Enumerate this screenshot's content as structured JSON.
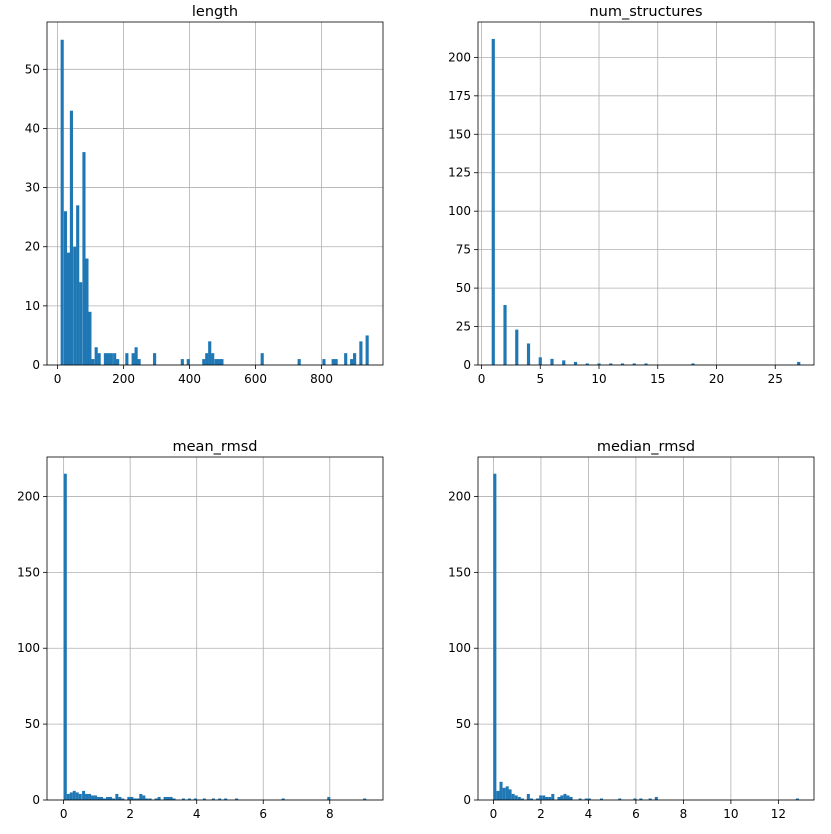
{
  "chart_data": [
    {
      "type": "bar",
      "title": "length",
      "xlim": [
        -32,
        986
      ],
      "ylim": [
        0,
        58
      ],
      "xticks": [
        0,
        200,
        400,
        600,
        800
      ],
      "yticks": [
        0,
        10,
        20,
        30,
        40,
        50
      ],
      "grid": true,
      "color": "#1f77b4",
      "bin_width": 9.5,
      "bins": [
        [
          14,
          55
        ],
        [
          24,
          26
        ],
        [
          33,
          19
        ],
        [
          42,
          43
        ],
        [
          52,
          20
        ],
        [
          61,
          27
        ],
        [
          70,
          14
        ],
        [
          80,
          36
        ],
        [
          89,
          18
        ],
        [
          98,
          9
        ],
        [
          107,
          1
        ],
        [
          117,
          3
        ],
        [
          126,
          2
        ],
        [
          145,
          2
        ],
        [
          154,
          2
        ],
        [
          163,
          2
        ],
        [
          173,
          2
        ],
        [
          182,
          1
        ],
        [
          210,
          2
        ],
        [
          229,
          2
        ],
        [
          238,
          3
        ],
        [
          247,
          1
        ],
        [
          294,
          2
        ],
        [
          378,
          1
        ],
        [
          396,
          1
        ],
        [
          443,
          1
        ],
        [
          452,
          2
        ],
        [
          461,
          4
        ],
        [
          470,
          2
        ],
        [
          480,
          1
        ],
        [
          489,
          1
        ],
        [
          498,
          1
        ],
        [
          620,
          2
        ],
        [
          732,
          1
        ],
        [
          807,
          1
        ],
        [
          835,
          1
        ],
        [
          844,
          1
        ],
        [
          873,
          2
        ],
        [
          891,
          1
        ],
        [
          900,
          2
        ],
        [
          919,
          4
        ],
        [
          938,
          5
        ]
      ]
    },
    {
      "type": "bar",
      "title": "num_structures",
      "xlim": [
        -0.3,
        28.3
      ],
      "ylim": [
        0,
        223
      ],
      "xticks": [
        0,
        5,
        10,
        15,
        20,
        25
      ],
      "yticks": [
        0,
        25,
        50,
        75,
        100,
        125,
        150,
        175,
        200
      ],
      "grid": true,
      "color": "#1f77b4",
      "bin_width": 0.27,
      "bins": [
        [
          1,
          212
        ],
        [
          2,
          39
        ],
        [
          3,
          23
        ],
        [
          4,
          14
        ],
        [
          5,
          5
        ],
        [
          6,
          4
        ],
        [
          7,
          3
        ],
        [
          8,
          2
        ],
        [
          9,
          1
        ],
        [
          10,
          1
        ],
        [
          11,
          1
        ],
        [
          12,
          1
        ],
        [
          13,
          1
        ],
        [
          14,
          1
        ],
        [
          18,
          1
        ],
        [
          27,
          2
        ]
      ]
    },
    {
      "type": "bar",
      "title": "mean_rmsd",
      "xlim": [
        -0.5,
        9.6
      ],
      "ylim": [
        0,
        226
      ],
      "xticks": [
        0,
        2,
        4,
        6,
        8
      ],
      "yticks": [
        0,
        50,
        100,
        150,
        200
      ],
      "grid": true,
      "color": "#1f77b4",
      "bin_width": 0.091,
      "bins": [
        [
          0.05,
          215
        ],
        [
          0.14,
          4
        ],
        [
          0.23,
          5
        ],
        [
          0.32,
          6
        ],
        [
          0.41,
          5
        ],
        [
          0.5,
          4
        ],
        [
          0.6,
          6
        ],
        [
          0.69,
          4
        ],
        [
          0.78,
          4
        ],
        [
          0.87,
          3
        ],
        [
          0.96,
          3
        ],
        [
          1.05,
          2
        ],
        [
          1.14,
          2
        ],
        [
          1.23,
          1
        ],
        [
          1.32,
          2
        ],
        [
          1.41,
          2
        ],
        [
          1.5,
          1
        ],
        [
          1.6,
          4
        ],
        [
          1.69,
          2
        ],
        [
          1.78,
          1
        ],
        [
          1.96,
          2
        ],
        [
          2.05,
          2
        ],
        [
          2.14,
          1
        ],
        [
          2.23,
          1
        ],
        [
          2.32,
          4
        ],
        [
          2.41,
          3
        ],
        [
          2.5,
          1
        ],
        [
          2.6,
          1
        ],
        [
          2.78,
          1
        ],
        [
          2.87,
          2
        ],
        [
          3.05,
          2
        ],
        [
          3.14,
          2
        ],
        [
          3.23,
          2
        ],
        [
          3.32,
          1
        ],
        [
          3.6,
          1
        ],
        [
          3.78,
          1
        ],
        [
          3.96,
          1
        ],
        [
          4.23,
          1
        ],
        [
          4.5,
          1
        ],
        [
          4.69,
          1
        ],
        [
          4.87,
          1
        ],
        [
          5.2,
          1
        ],
        [
          6.6,
          1
        ],
        [
          7.97,
          2
        ],
        [
          9.05,
          1
        ]
      ]
    },
    {
      "type": "bar",
      "title": "median_rmsd",
      "xlim": [
        -0.65,
        13.5
      ],
      "ylim": [
        0,
        226
      ],
      "xticks": [
        0,
        2,
        4,
        6,
        8,
        10,
        12
      ],
      "yticks": [
        0,
        50,
        100,
        150,
        200
      ],
      "grid": true,
      "color": "#1f77b4",
      "bin_width": 0.128,
      "bins": [
        [
          0.06,
          215
        ],
        [
          0.19,
          6
        ],
        [
          0.32,
          12
        ],
        [
          0.45,
          8
        ],
        [
          0.58,
          9
        ],
        [
          0.7,
          7
        ],
        [
          0.83,
          4
        ],
        [
          0.96,
          3
        ],
        [
          1.09,
          2
        ],
        [
          1.22,
          1
        ],
        [
          1.47,
          4
        ],
        [
          1.6,
          1
        ],
        [
          1.86,
          1
        ],
        [
          1.99,
          3
        ],
        [
          2.12,
          3
        ],
        [
          2.24,
          2
        ],
        [
          2.37,
          2
        ],
        [
          2.5,
          4
        ],
        [
          2.76,
          2
        ],
        [
          2.88,
          3
        ],
        [
          3.01,
          4
        ],
        [
          3.14,
          3
        ],
        [
          3.27,
          2
        ],
        [
          3.65,
          1
        ],
        [
          3.91,
          1
        ],
        [
          4.04,
          1
        ],
        [
          4.55,
          1
        ],
        [
          5.32,
          1
        ],
        [
          5.96,
          1
        ],
        [
          6.21,
          1
        ],
        [
          6.6,
          1
        ],
        [
          6.86,
          2
        ],
        [
          12.8,
          1
        ]
      ]
    }
  ]
}
